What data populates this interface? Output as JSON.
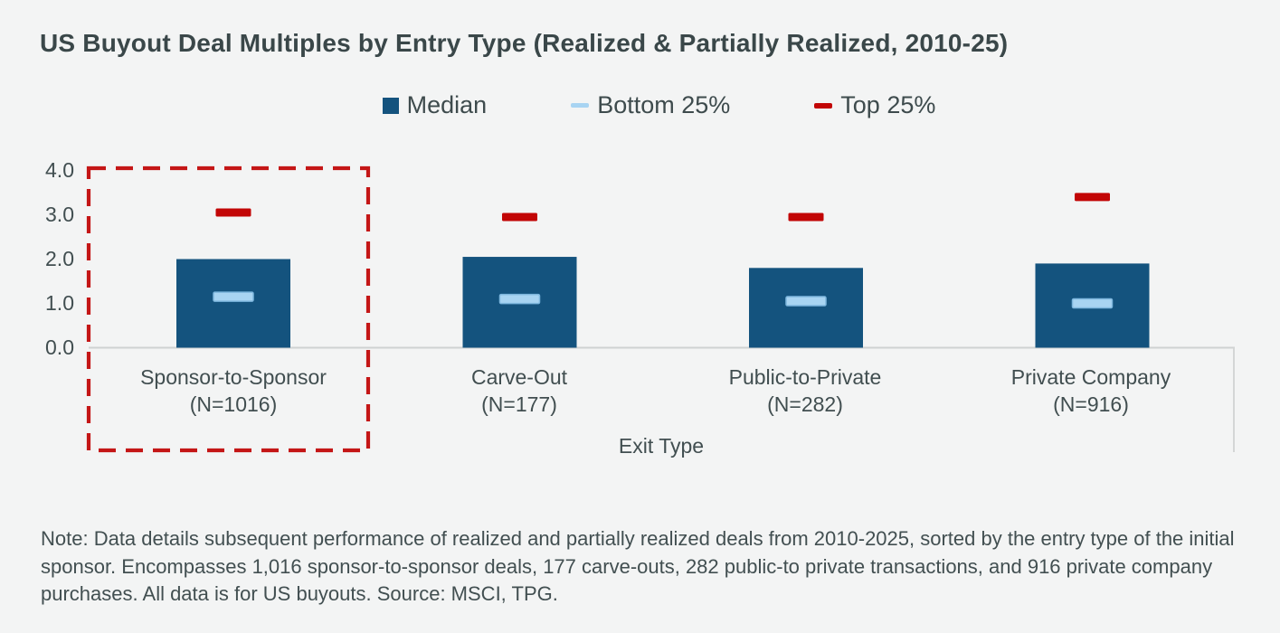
{
  "title": "US Buyout Deal Multiples by Entry Type (Realized & Partially Realized, 2010-25)",
  "legend": {
    "items": [
      {
        "label": "Median",
        "color": "#14537E",
        "shape": "square"
      },
      {
        "label": "Bottom 25%",
        "color": "#A8D4F2",
        "shape": "dash"
      },
      {
        "label": "Top 25%",
        "color": "#C20606",
        "shape": "dash"
      }
    ]
  },
  "chart_data": {
    "type": "bar",
    "categories": [
      {
        "label": "Sponsor-to-Sponsor",
        "sublabel": "(N=1016)"
      },
      {
        "label": "Carve-Out",
        "sublabel": "(N=177)"
      },
      {
        "label": "Public-to-Private",
        "sublabel": "(N=282)"
      },
      {
        "label": "Private Company",
        "sublabel": "(N=916)"
      }
    ],
    "series": [
      {
        "name": "Median",
        "render": "bar",
        "color": "#14537E",
        "values": [
          2.0,
          2.05,
          1.8,
          1.9
        ]
      },
      {
        "name": "Bottom 25%",
        "render": "dash",
        "color": "#A8D4F2",
        "border": "#7EB7DE",
        "values": [
          1.15,
          1.1,
          1.05,
          1.0
        ]
      },
      {
        "name": "Top 25%",
        "render": "dash",
        "color": "#C20606",
        "values": [
          3.05,
          2.95,
          2.95,
          3.4
        ]
      }
    ],
    "xlabel": "Exit Type",
    "ylim": [
      0,
      4
    ],
    "yticks": [
      "4.0",
      "3.0",
      "2.0",
      "1.0",
      "0.0"
    ],
    "grid": "off",
    "legend_position": "top-center",
    "highlight_box": {
      "category_index": 0,
      "color": "#C41616",
      "style": "dashed"
    }
  },
  "note": "Note: Data details subsequent performance of realized and partially realized deals from 2010-2025, sorted by the entry type of the initial sponsor. Encompasses 1,016 sponsor-to-sponsor deals, 177 carve-outs, 282 public-to private transactions, and 916 private company purchases. All data is for US buyouts. Source: MSCI, TPG."
}
